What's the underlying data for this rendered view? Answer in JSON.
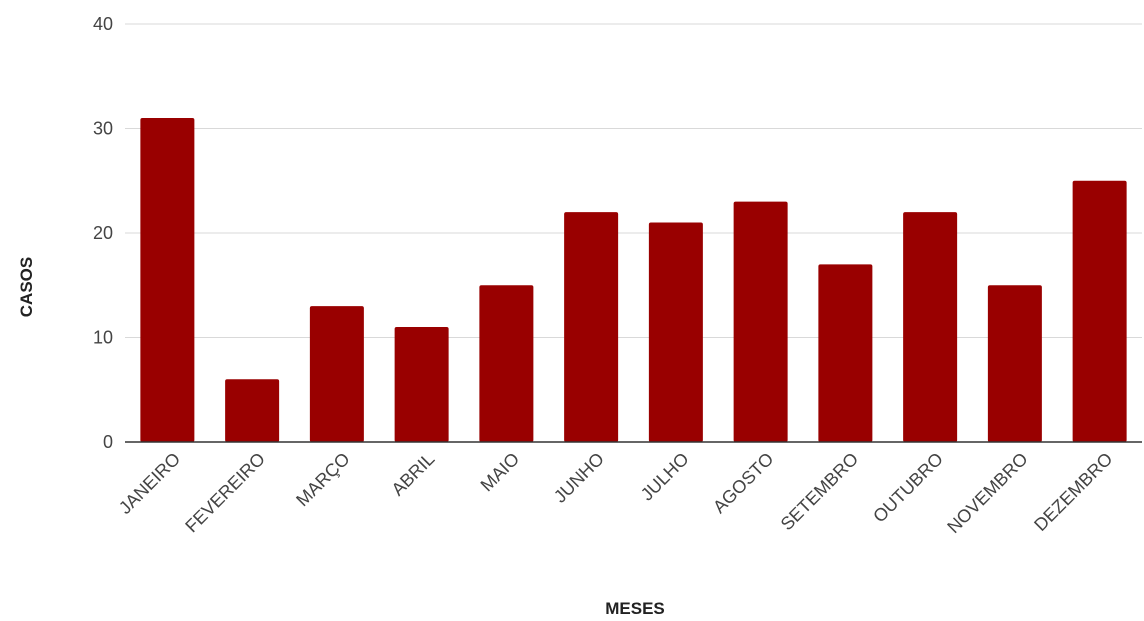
{
  "chart_data": {
    "type": "bar",
    "categories": [
      "JANEIRO",
      "FEVEREIRO",
      "MARÇO",
      "ABRIL",
      "MAIO",
      "JUNHO",
      "JULHO",
      "AGOSTO",
      "SETEMBRO",
      "OUTUBRO",
      "NOVEMBRO",
      "DEZEMBRO"
    ],
    "values": [
      31,
      6,
      13,
      11,
      15,
      22,
      21,
      23,
      17,
      22,
      15,
      25
    ],
    "xlabel": "MESES",
    "ylabel": "CASOS",
    "ylim": [
      0,
      40
    ],
    "yticks": [
      0,
      10,
      20,
      30,
      40
    ],
    "grid": true,
    "bar_color": "#990000",
    "grid_color": "#d9d9d9",
    "axis_color": "#333333"
  }
}
